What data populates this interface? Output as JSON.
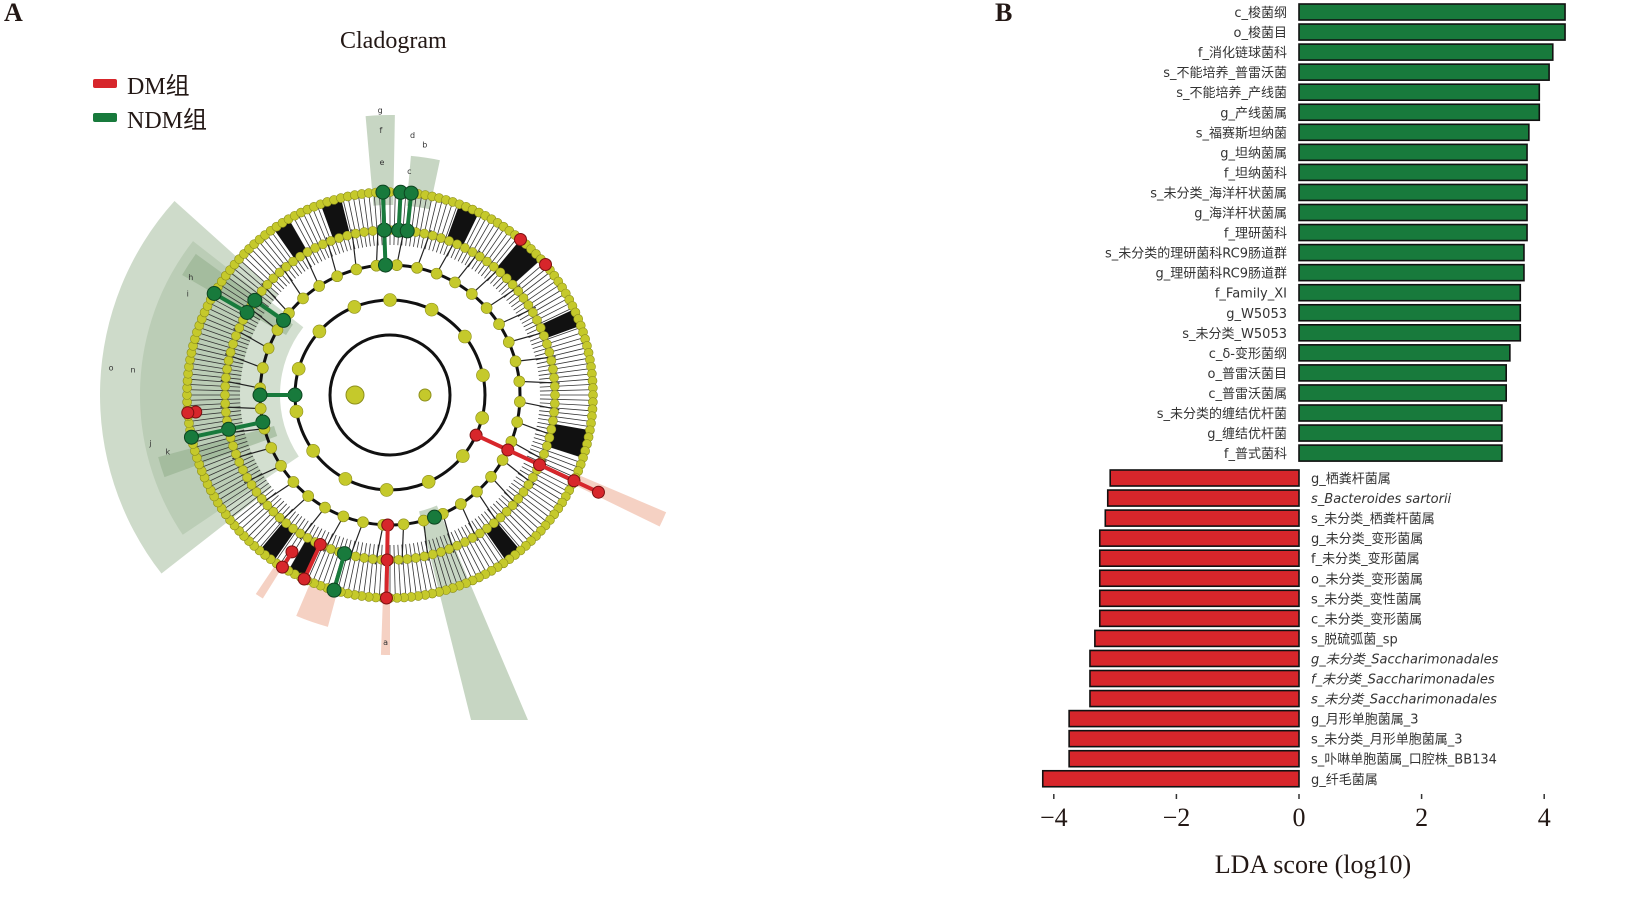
{
  "panels": {
    "a_label": "A",
    "b_label": "B"
  },
  "cladogram": {
    "title": "Cladogram",
    "legend": [
      {
        "label": "DM组",
        "color": "#d7262b"
      },
      {
        "label": "NDM组",
        "color": "#187a3c"
      }
    ],
    "clade_letters": [
      "a",
      "b",
      "c",
      "d",
      "e",
      "f",
      "g",
      "h",
      "i",
      "j",
      "k",
      "m",
      "n",
      "o"
    ],
    "colors": {
      "node": "#c5c92b",
      "dm": "#d7262b",
      "ndm": "#187a3c",
      "shade_ndm": "#b9ccb4",
      "shade_dm": "#f2c6b4"
    }
  },
  "chart_data": {
    "type": "bar",
    "orientation": "horizontal",
    "title": "",
    "xlabel": "LDA score (log10)",
    "ylabel": "",
    "xlim": [
      -4.3,
      4.4
    ],
    "xticks": [
      -4,
      -2,
      0,
      2,
      4
    ],
    "xtick_labels": [
      "−4",
      "−2",
      "0",
      "2",
      "4"
    ],
    "grid": false,
    "series": [
      {
        "name": "NDM组",
        "color": "#187a3c",
        "categories": [
          "c_梭菌纲",
          "o_梭菌目",
          "f_消化链球菌科",
          "s_不能培养_普雷沃菌",
          "s_不能培养_产线菌",
          "g_产线菌属",
          "s_福赛斯坦纳菌",
          "g_坦纳菌属",
          "f_坦纳菌科",
          "s_未分类_海洋杆状菌属",
          "g_海洋杆状菌属",
          "f_理研菌科",
          "s_未分类的理研菌科RC9肠道群",
          "g_理研菌科RC9肠道群",
          "f_Family_XI",
          "g_W5053",
          "s_未分类_W5053",
          "c_δ-变形菌纲",
          "o_普雷沃菌目",
          "c_普雷沃菌属",
          "s_未分类的缠结优杆菌",
          "g_缠结优杆菌",
          "f_普式菌科"
        ],
        "values": [
          4.34,
          4.34,
          4.14,
          4.08,
          3.92,
          3.92,
          3.75,
          3.72,
          3.72,
          3.72,
          3.72,
          3.72,
          3.67,
          3.67,
          3.61,
          3.61,
          3.61,
          3.44,
          3.38,
          3.38,
          3.31,
          3.31,
          3.31
        ]
      },
      {
        "name": "DM组",
        "color": "#d7262b",
        "categories": [
          "g_栖粪杆菌属",
          "s_Bacteroides sartorii",
          "s_未分类_栖粪杆菌属",
          "g_未分类_变形菌属",
          "f_未分类_变形菌属",
          "o_未分类_变形菌属",
          "s_未分类_变性菌属",
          "c_未分类_变形菌属",
          "s_脱硫弧菌_sp",
          "g_未分类_Saccharimonadales",
          "f_未分类_Saccharimonadales",
          "s_未分类_Saccharimonadales",
          "g_月形单胞菌属_3",
          "s_未分类_月形单胞菌属_3",
          "s_卟啉单胞菌属_口腔株_BB134",
          "g_纤毛菌属"
        ],
        "italic": [
          false,
          true,
          false,
          false,
          false,
          false,
          false,
          false,
          false,
          true,
          true,
          true,
          false,
          false,
          false,
          false
        ],
        "values": [
          -3.08,
          -3.12,
          -3.16,
          -3.25,
          -3.25,
          -3.25,
          -3.25,
          -3.25,
          -3.33,
          -3.41,
          -3.41,
          -3.41,
          -3.75,
          -3.75,
          -3.75,
          -4.18
        ]
      }
    ]
  }
}
